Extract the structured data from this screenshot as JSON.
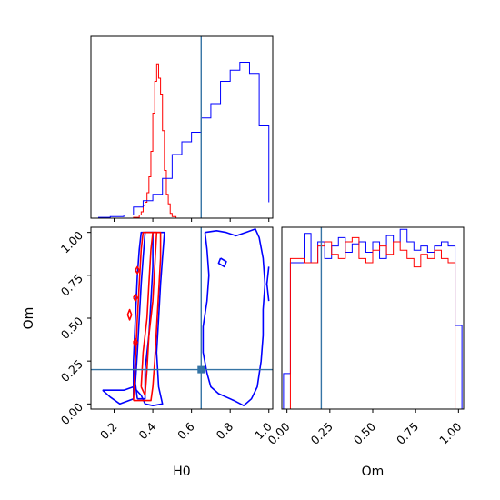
{
  "chart_data": [
    {
      "panel": "H0 marginal",
      "type": "histogram",
      "xlim": [
        0.08,
        1.02
      ],
      "truth": {
        "x": 0.65
      },
      "series": [
        {
          "color": "#ff0000",
          "bin_edges": [
            0.3,
            0.33,
            0.34,
            0.35,
            0.36,
            0.37,
            0.38,
            0.39,
            0.4,
            0.41,
            0.42,
            0.43,
            0.44,
            0.45,
            0.46,
            0.47,
            0.48,
            0.49,
            0.5,
            0.52
          ],
          "counts": [
            0.005,
            0.02,
            0.04,
            0.08,
            0.1,
            0.16,
            0.26,
            0.42,
            0.66,
            0.86,
            0.97,
            0.88,
            0.78,
            0.55,
            0.3,
            0.15,
            0.09,
            0.03,
            0.01
          ]
        },
        {
          "color": "#0000ff",
          "bin_edges": [
            0.12,
            0.18,
            0.25,
            0.3,
            0.35,
            0.4,
            0.45,
            0.5,
            0.55,
            0.6,
            0.65,
            0.7,
            0.75,
            0.8,
            0.85,
            0.9,
            0.95,
            1.0
          ],
          "counts": [
            0.005,
            0.01,
            0.02,
            0.07,
            0.11,
            0.15,
            0.25,
            0.4,
            0.48,
            0.54,
            0.63,
            0.72,
            0.86,
            0.93,
            0.98,
            0.91,
            0.58,
            0.1
          ]
        }
      ]
    },
    {
      "panel": "H0 vs Om",
      "type": "contour",
      "xlim": [
        0.08,
        1.02
      ],
      "ylim": [
        -0.03,
        1.03
      ],
      "xticks": [
        "0.2",
        "0.4",
        "0.6",
        "0.8",
        "1.0"
      ],
      "yticks": [
        "0.00",
        "0.25",
        "0.50",
        "0.75",
        "1.00"
      ],
      "xlabel": "H0",
      "ylabel": "Om",
      "truth": {
        "x": 0.65,
        "y": 0.2
      },
      "series": [
        {
          "color": "#0000ff",
          "contours": [
            [
              [
                0.32,
                0.03
              ],
              [
                0.31,
                0.12
              ],
              [
                0.32,
                0.3
              ],
              [
                0.33,
                0.5
              ],
              [
                0.34,
                0.7
              ],
              [
                0.35,
                0.85
              ],
              [
                0.36,
                1.0
              ],
              [
                0.4,
                1.0
              ],
              [
                0.4,
                0.8
              ],
              [
                0.39,
                0.6
              ],
              [
                0.38,
                0.4
              ],
              [
                0.36,
                0.2
              ],
              [
                0.36,
                0.03
              ],
              [
                0.32,
                0.03
              ]
            ],
            [
              [
                0.14,
                0.08
              ],
              [
                0.18,
                0.04
              ],
              [
                0.23,
                0.0
              ],
              [
                0.3,
                0.03
              ],
              [
                0.3,
                0.25
              ],
              [
                0.31,
                0.5
              ],
              [
                0.32,
                0.75
              ],
              [
                0.33,
                0.9
              ],
              [
                0.34,
                1.0
              ],
              [
                0.46,
                1.0
              ],
              [
                0.45,
                0.85
              ],
              [
                0.44,
                0.7
              ],
              [
                0.43,
                0.5
              ],
              [
                0.42,
                0.3
              ],
              [
                0.43,
                0.1
              ],
              [
                0.45,
                0.0
              ],
              [
                0.4,
                -0.01
              ],
              [
                0.36,
                0.0
              ],
              [
                0.34,
                0.05
              ],
              [
                0.3,
                0.1
              ],
              [
                0.25,
                0.08
              ],
              [
                0.2,
                0.08
              ],
              [
                0.14,
                0.08
              ]
            ],
            [
              [
                0.67,
                1.0
              ],
              [
                0.68,
                0.9
              ],
              [
                0.69,
                0.75
              ],
              [
                0.68,
                0.6
              ],
              [
                0.66,
                0.45
              ],
              [
                0.66,
                0.3
              ],
              [
                0.68,
                0.18
              ],
              [
                0.7,
                0.1
              ],
              [
                0.74,
                0.06
              ],
              [
                0.78,
                0.04
              ],
              [
                0.82,
                0.02
              ],
              [
                0.87,
                -0.01
              ],
              [
                0.91,
                0.03
              ],
              [
                0.94,
                0.1
              ],
              [
                0.96,
                0.25
              ],
              [
                0.97,
                0.4
              ],
              [
                0.97,
                0.55
              ],
              [
                0.98,
                0.7
              ],
              [
                0.97,
                0.85
              ],
              [
                0.95,
                0.97
              ],
              [
                0.93,
                1.02
              ],
              [
                0.88,
                1.0
              ],
              [
                0.83,
                0.98
              ],
              [
                0.78,
                1.0
              ],
              [
                0.73,
                1.01
              ],
              [
                0.67,
                1.0
              ]
            ],
            [
              [
                1.0,
                0.6
              ],
              [
                0.99,
                0.7
              ],
              [
                1.0,
                0.8
              ]
            ],
            [
              [
                0.75,
                0.85
              ],
              [
                0.78,
                0.83
              ],
              [
                0.77,
                0.8
              ],
              [
                0.74,
                0.82
              ],
              [
                0.75,
                0.85
              ]
            ]
          ]
        },
        {
          "color": "#ff0000",
          "contours": [
            [
              [
                0.34,
                0.1
              ],
              [
                0.35,
                0.3
              ],
              [
                0.37,
                0.5
              ],
              [
                0.38,
                0.7
              ],
              [
                0.39,
                0.9
              ],
              [
                0.4,
                1.0
              ],
              [
                0.42,
                1.0
              ],
              [
                0.41,
                0.8
              ],
              [
                0.4,
                0.6
              ],
              [
                0.38,
                0.4
              ],
              [
                0.37,
                0.2
              ],
              [
                0.36,
                0.05
              ],
              [
                0.34,
                0.1
              ]
            ],
            [
              [
                0.3,
                0.02
              ],
              [
                0.31,
                0.25
              ],
              [
                0.32,
                0.5
              ],
              [
                0.33,
                0.7
              ],
              [
                0.34,
                0.9
              ],
              [
                0.35,
                1.0
              ],
              [
                0.44,
                1.0
              ],
              [
                0.44,
                0.85
              ],
              [
                0.43,
                0.65
              ],
              [
                0.42,
                0.45
              ],
              [
                0.41,
                0.25
              ],
              [
                0.4,
                0.1
              ],
              [
                0.39,
                0.02
              ],
              [
                0.3,
                0.02
              ]
            ],
            [
              [
                0.27,
                0.52
              ],
              [
                0.28,
                0.55
              ],
              [
                0.29,
                0.52
              ],
              [
                0.28,
                0.49
              ],
              [
                0.27,
                0.52
              ]
            ],
            [
              [
                0.3,
                0.62
              ],
              [
                0.31,
                0.64
              ],
              [
                0.32,
                0.62
              ],
              [
                0.31,
                0.6
              ],
              [
                0.3,
                0.62
              ]
            ],
            [
              [
                0.31,
                0.78
              ],
              [
                0.32,
                0.8
              ],
              [
                0.33,
                0.78
              ],
              [
                0.32,
                0.76
              ],
              [
                0.31,
                0.78
              ]
            ],
            [
              [
                0.3,
                0.36
              ],
              [
                0.31,
                0.38
              ],
              [
                0.32,
                0.36
              ],
              [
                0.31,
                0.33
              ],
              [
                0.3,
                0.36
              ]
            ]
          ]
        }
      ]
    },
    {
      "panel": "Om marginal",
      "type": "histogram",
      "xlim": [
        -0.03,
        1.03
      ],
      "xticks": [
        "0.00",
        "0.25",
        "0.50",
        "0.75",
        "1.00"
      ],
      "xlabel": "Om",
      "truth": {
        "x": 0.2
      },
      "series": [
        {
          "color": "#0000ff",
          "bin_edges": [
            -0.02,
            0.02,
            0.06,
            0.1,
            0.14,
            0.18,
            0.22,
            0.26,
            0.3,
            0.34,
            0.38,
            0.42,
            0.46,
            0.5,
            0.54,
            0.58,
            0.62,
            0.66,
            0.7,
            0.74,
            0.78,
            0.82,
            0.86,
            0.9,
            0.94,
            0.98,
            1.02
          ],
          "counts": [
            0.17,
            0.7,
            0.7,
            0.84,
            0.7,
            0.8,
            0.72,
            0.78,
            0.82,
            0.75,
            0.79,
            0.8,
            0.75,
            0.8,
            0.72,
            0.83,
            0.8,
            0.86,
            0.8,
            0.76,
            0.78,
            0.75,
            0.78,
            0.8,
            0.78,
            0.4
          ]
        },
        {
          "color": "#ff0000",
          "bin_edges": [
            -0.02,
            0.02,
            0.06,
            0.1,
            0.14,
            0.18,
            0.22,
            0.26,
            0.3,
            0.34,
            0.38,
            0.42,
            0.46,
            0.5,
            0.54,
            0.58,
            0.62,
            0.66,
            0.7,
            0.74,
            0.78,
            0.82,
            0.86,
            0.9,
            0.94,
            0.98,
            1.02
          ],
          "counts": [
            0.0,
            0.72,
            0.72,
            0.7,
            0.7,
            0.78,
            0.8,
            0.74,
            0.72,
            0.8,
            0.82,
            0.72,
            0.7,
            0.76,
            0.78,
            0.74,
            0.8,
            0.76,
            0.72,
            0.68,
            0.74,
            0.72,
            0.76,
            0.72,
            0.7,
            0.0
          ]
        }
      ]
    }
  ],
  "colors": {
    "truth_line": "#3574a5",
    "axes": "#000000",
    "background": "#ffffff"
  }
}
